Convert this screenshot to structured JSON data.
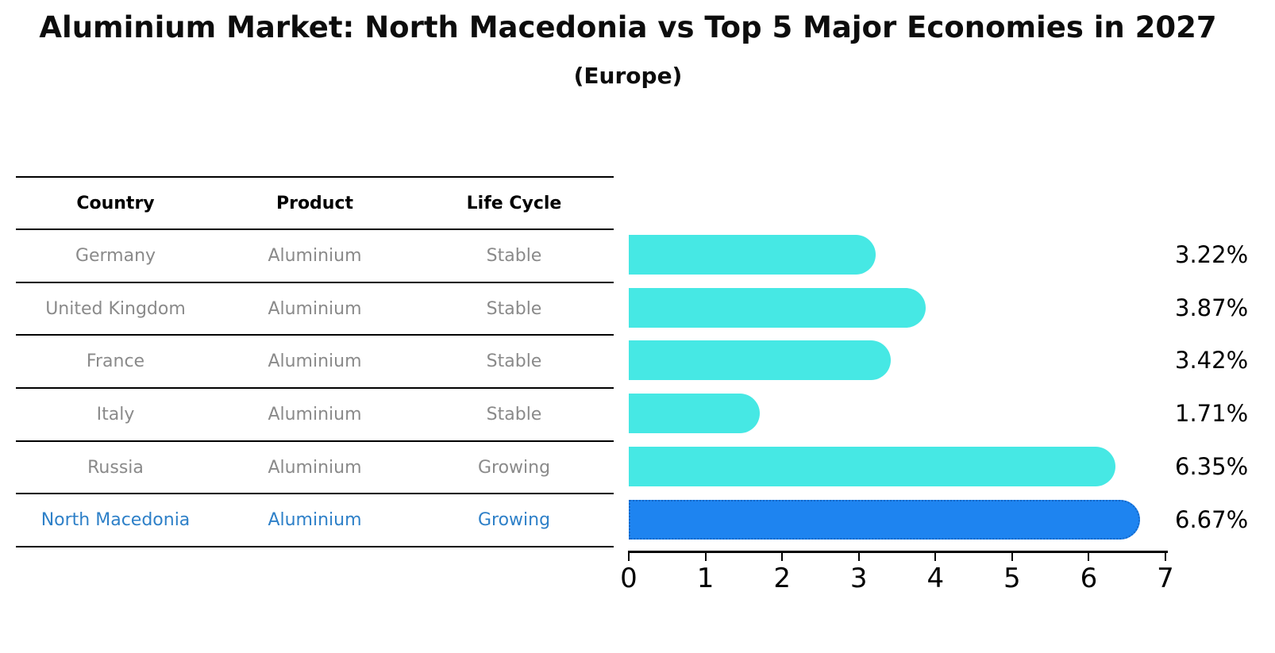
{
  "title": "Aluminium Market: North Macedonia vs Top 5 Major Economies in 2027",
  "subtitle": "(Europe)",
  "table": {
    "headers": [
      "Country",
      "Product",
      "Life Cycle"
    ],
    "rows": [
      {
        "country": "Germany",
        "product": "Aluminium",
        "life_cycle": "Stable",
        "highlight": false
      },
      {
        "country": "United Kingdom",
        "product": "Aluminium",
        "life_cycle": "Stable",
        "highlight": false
      },
      {
        "country": "France",
        "product": "Aluminium",
        "life_cycle": "Stable",
        "highlight": false
      },
      {
        "country": "Italy",
        "product": "Aluminium",
        "life_cycle": "Stable",
        "highlight": false
      },
      {
        "country": "Russia",
        "product": "Aluminium",
        "life_cycle": "Growing",
        "highlight": false
      },
      {
        "country": "North Macedonia",
        "product": "Aluminium",
        "life_cycle": "Growing",
        "highlight": true
      }
    ]
  },
  "chart_data": {
    "type": "bar",
    "orientation": "horizontal",
    "title": "Aluminium Market: North Macedonia vs Top 5 Major Economies in 2027 (Europe)",
    "xlabel": "",
    "ylabel": "",
    "categories": [
      "Germany",
      "United Kingdom",
      "France",
      "Italy",
      "Russia",
      "North Macedonia"
    ],
    "values": [
      3.22,
      3.87,
      3.42,
      1.71,
      6.35,
      6.67
    ],
    "value_labels": [
      "3.22%",
      "3.87%",
      "3.42%",
      "1.71%",
      "6.35%",
      "6.67%"
    ],
    "x_ticks": [
      0,
      1,
      2,
      3,
      4,
      5,
      6,
      7
    ],
    "xlim": [
      0,
      7
    ],
    "grid": false,
    "legend": null,
    "highlight_index": 5,
    "colors": {
      "bar_default": "#46e8e4",
      "bar_highlight": "#1e84f0",
      "bar_highlight_border": "#1467c8",
      "row_text": "#8a8a8a",
      "highlight_text": "#2e80c8"
    }
  }
}
